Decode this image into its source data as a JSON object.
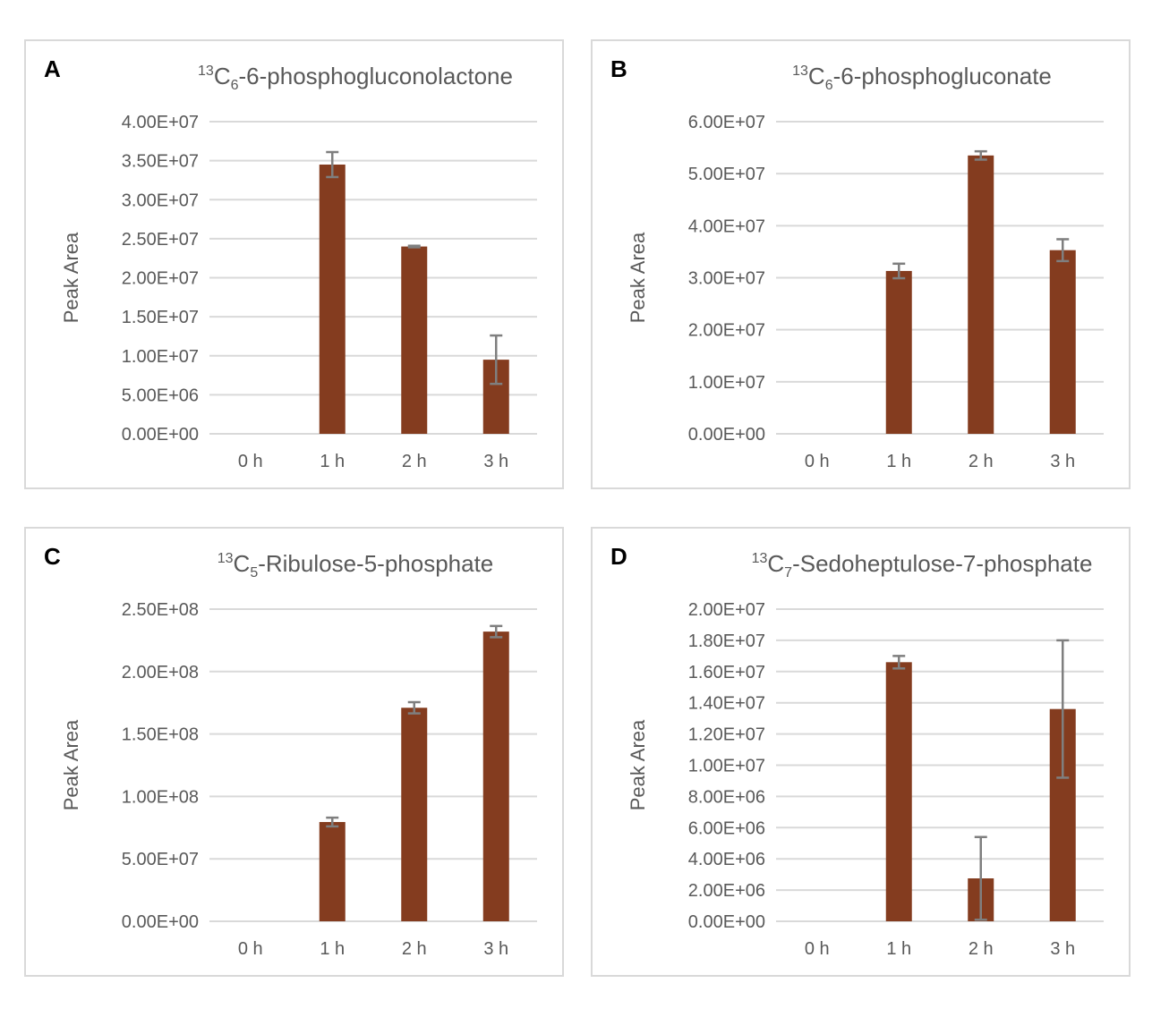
{
  "colors": {
    "bar": "#843c1f",
    "error": "#7f7f7f",
    "grid": "#d9d9d9",
    "text": "#595959"
  },
  "chart_data": [
    {
      "type": "bar",
      "panel": "A",
      "title_sup": "13",
      "title_main": "C",
      "title_sub": "6",
      "title_rest": "-6-phosphogluconolactone",
      "ylabel": "Peak Area",
      "categories": [
        "0 h",
        "1 h",
        "2 h",
        "3 h"
      ],
      "values": [
        0,
        34500000,
        24000000,
        9500000
      ],
      "errors": [
        0,
        1600000,
        100000,
        3100000
      ],
      "ylim": [
        0,
        40000000
      ],
      "yticks": [
        "0.00E+00",
        "5.00E+06",
        "1.00E+07",
        "1.50E+07",
        "2.00E+07",
        "2.50E+07",
        "3.00E+07",
        "3.50E+07",
        "4.00E+07"
      ],
      "grid": true
    },
    {
      "type": "bar",
      "panel": "B",
      "title_sup": "13",
      "title_main": "C",
      "title_sub": "6",
      "title_rest": "-6-phosphogluconate",
      "ylabel": "Peak Area",
      "categories": [
        "0 h",
        "1 h",
        "2 h",
        "3 h"
      ],
      "values": [
        0,
        31300000,
        53500000,
        35300000
      ],
      "errors": [
        0,
        1400000,
        800000,
        2100000
      ],
      "ylim": [
        0,
        60000000
      ],
      "yticks": [
        "0.00E+00",
        "1.00E+07",
        "2.00E+07",
        "3.00E+07",
        "4.00E+07",
        "5.00E+07",
        "6.00E+07"
      ],
      "grid": true
    },
    {
      "type": "bar",
      "panel": "C",
      "title_sup": "13",
      "title_main": "C",
      "title_sub": "5",
      "title_rest": "-Ribulose-5-phosphate",
      "ylabel": "Peak Area",
      "categories": [
        "0 h",
        "1 h",
        "2 h",
        "3 h"
      ],
      "values": [
        0,
        79500000,
        171000000,
        232000000
      ],
      "errors": [
        0,
        3500000,
        4500000,
        4500000
      ],
      "ylim": [
        0,
        250000000
      ],
      "yticks": [
        "0.00E+00",
        "5.00E+07",
        "1.00E+08",
        "1.50E+08",
        "2.00E+08",
        "2.50E+08"
      ],
      "grid": true
    },
    {
      "type": "bar",
      "panel": "D",
      "title_sup": "13",
      "title_main": "C",
      "title_sub": "7",
      "title_rest": "-Sedoheptulose-7-phosphate",
      "ylabel": "Peak Area",
      "categories": [
        "0 h",
        "1 h",
        "2 h",
        "3 h"
      ],
      "values": [
        0,
        16600000,
        2750000,
        13600000
      ],
      "errors": [
        0,
        400000,
        2650000,
        4400000
      ],
      "ylim": [
        0,
        20000000
      ],
      "yticks": [
        "0.00E+00",
        "2.00E+06",
        "4.00E+06",
        "6.00E+06",
        "8.00E+06",
        "1.00E+07",
        "1.20E+07",
        "1.40E+07",
        "1.60E+07",
        "1.80E+07",
        "2.00E+07"
      ],
      "grid": true
    }
  ]
}
